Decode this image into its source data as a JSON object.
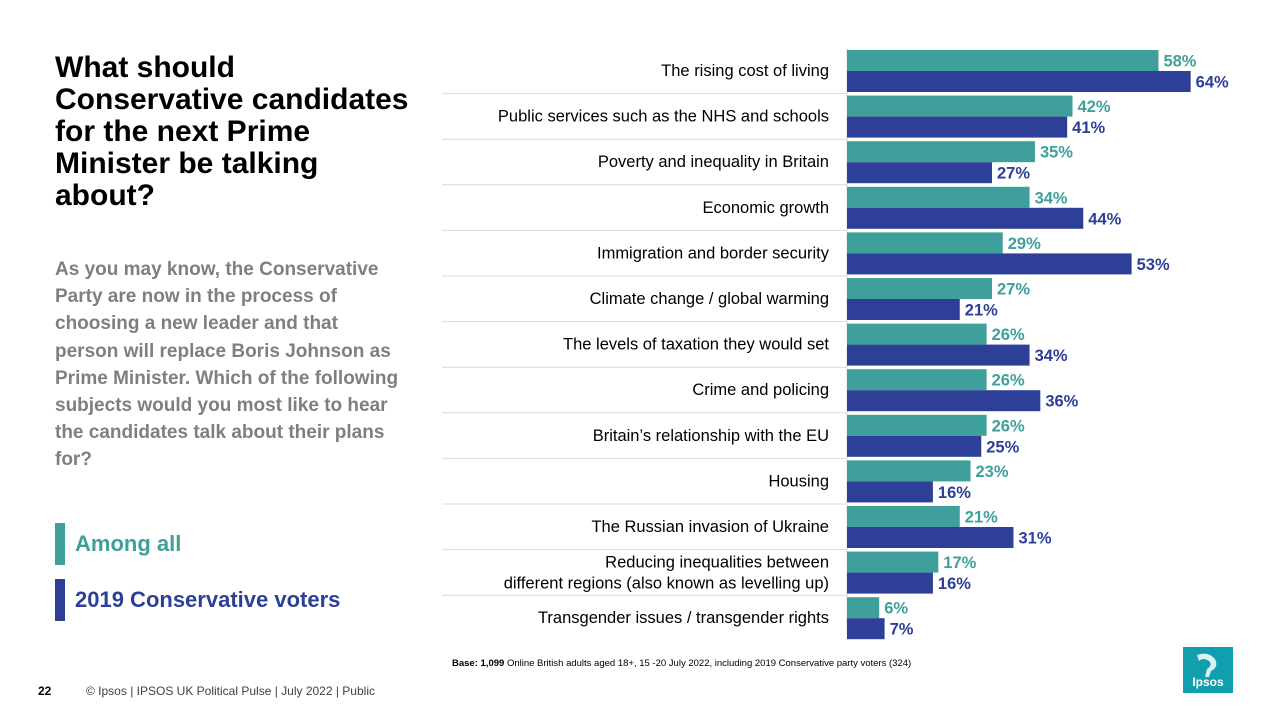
{
  "title": "What should Conservative candidates for the next Prime Minister be talking about?",
  "question": "As you may know, the Conservative Party are now in the process of choosing a new leader and that person will replace Boris Johnson as Prime Minister.  Which of the following subjects would you most like  to hear the candidates talk about their plans for?",
  "legend": [
    {
      "label": "Among all",
      "color": "#3f9f9a"
    },
    {
      "label": "2019 Conservative voters",
      "color": "#2e3f97"
    }
  ],
  "chart_data": {
    "type": "bar",
    "orientation": "horizontal",
    "title": "What should Conservative candidates for the next Prime Minister be talking about?",
    "categories": [
      "The rising cost of living",
      "Public services such as the NHS and schools",
      "Poverty and inequality in Britain",
      "Economic growth",
      "Immigration and border security",
      "Climate change / global warming",
      "The levels of taxation they would set",
      "Crime and policing",
      "Britain’s relationship with the EU",
      "Housing",
      "The Russian invasion of Ukraine",
      "Reducing inequalities between\ndifferent regions (also known as levelling up)",
      "Transgender issues / transgender rights"
    ],
    "series": [
      {
        "name": "Among all",
        "color": "#3f9f9a",
        "values": [
          58,
          42,
          35,
          34,
          29,
          27,
          26,
          26,
          26,
          23,
          21,
          17,
          6
        ]
      },
      {
        "name": "2019 Conservative voters",
        "color": "#2e3f97",
        "values": [
          64,
          41,
          27,
          44,
          53,
          21,
          34,
          36,
          25,
          16,
          31,
          16,
          7
        ]
      }
    ],
    "value_suffix": "%",
    "xlim": [
      0,
      100
    ],
    "grid": false
  },
  "base": {
    "label": "Base:",
    "n": "1,099",
    "text": "Online British adults aged 18+,  15 -20 July 2022, including 2019 Conservative party voters (324)"
  },
  "page_number": "22",
  "footer": "© Ipsos  |  IPSOS UK Political Pulse | July  2022 | Public",
  "logo": {
    "text": "Ipsos",
    "color": "#0f9fae"
  }
}
